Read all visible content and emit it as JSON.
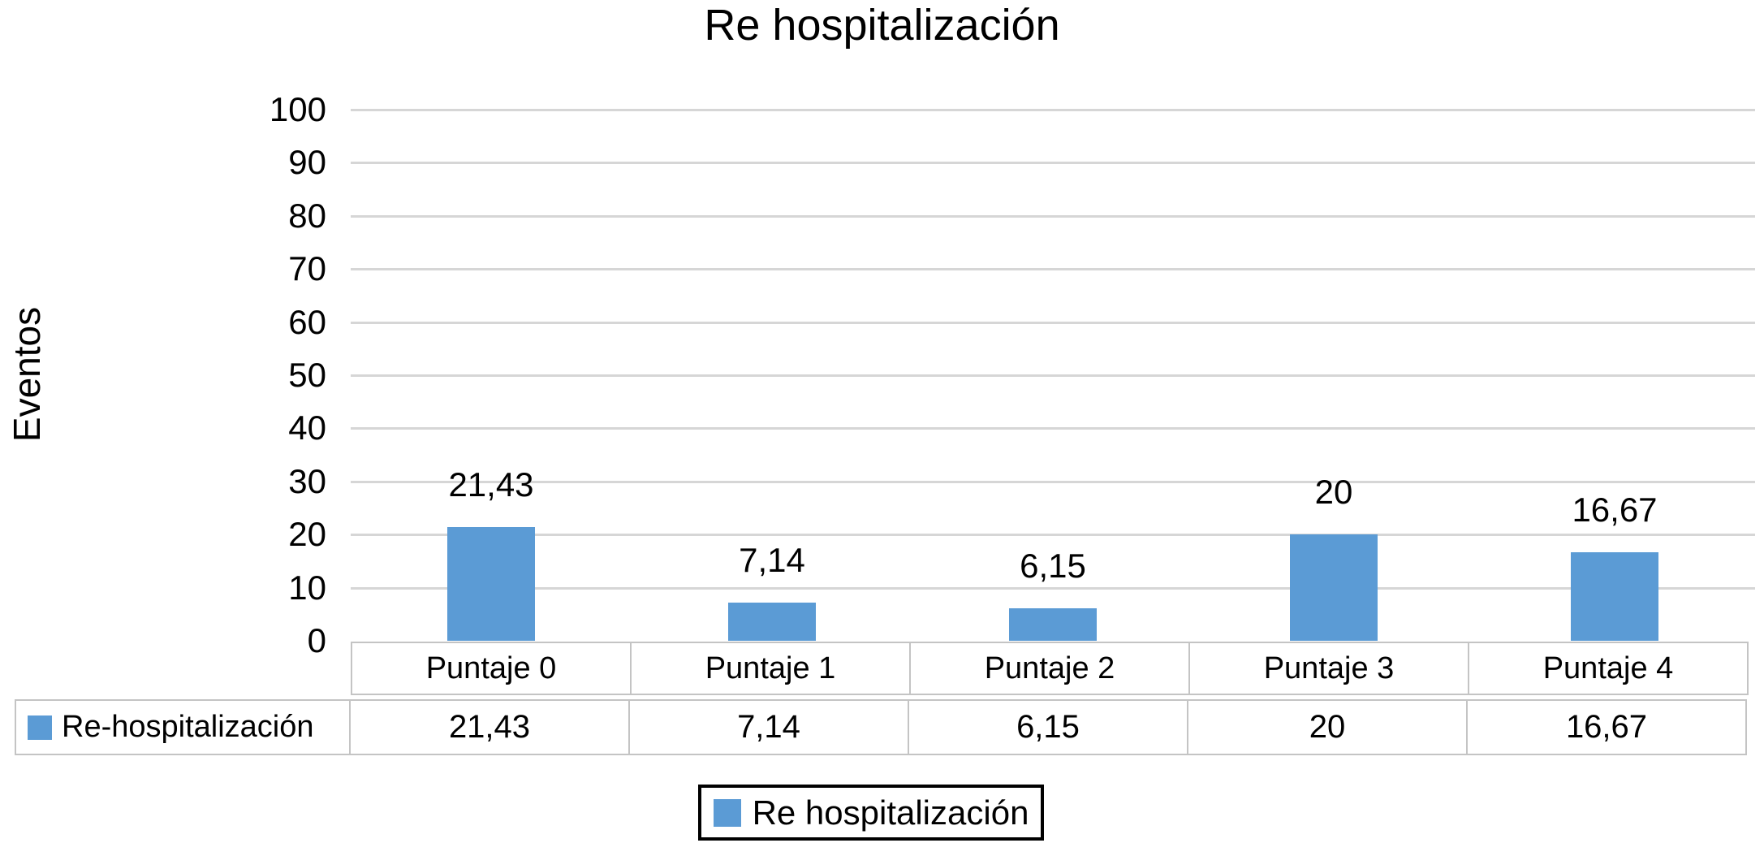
{
  "chart_data": {
    "type": "bar",
    "title": "Re hospitalización",
    "ylabel": "Eventos",
    "xlabel": "",
    "ylim": [
      0,
      100
    ],
    "ytick_step": 10,
    "grid": true,
    "legend_position": "bottom",
    "categories": [
      "Puntaje 0",
      "Puntaje 1",
      "Puntaje 2",
      "Puntaje 3",
      "Puntaje 4"
    ],
    "series": [
      {
        "name": "Re-hospitalización",
        "values": [
          21.43,
          7.14,
          6.15,
          20,
          16.67
        ],
        "value_labels": [
          "21,43",
          "7,14",
          "6,15",
          "20",
          "16,67"
        ],
        "color": "#5B9BD5"
      }
    ],
    "legend": {
      "entries": [
        {
          "label": "Re hospitalización",
          "color": "#5B9BD5"
        }
      ]
    },
    "data_table": {
      "row_header": "Re-hospitalización",
      "row_values": [
        "21,43",
        "7,14",
        "6,15",
        "20",
        "16,67"
      ]
    }
  },
  "colors": {
    "bar": "#5B9BD5",
    "gridline": "#D6D6D6",
    "table_border": "#C4C4C4",
    "legend_border": "#000000",
    "text": "#000000",
    "background": "#FFFFFF"
  }
}
